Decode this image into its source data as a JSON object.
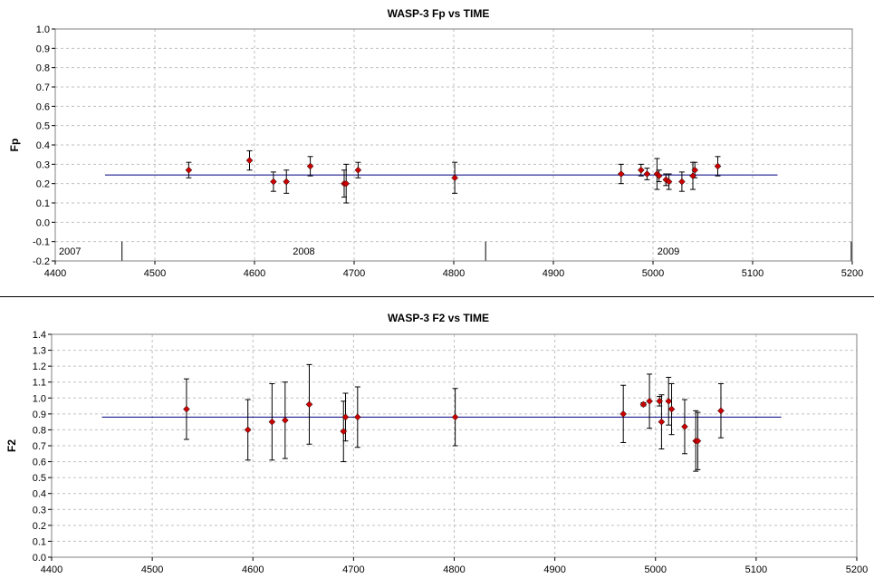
{
  "chart_data": [
    {
      "type": "scatter",
      "title": "WASP-3 Fp vs TIME",
      "xlabel": "",
      "ylabel": "Fp",
      "xlim": [
        4400,
        5200
      ],
      "ylim": [
        -0.2,
        1.0
      ],
      "x_ticks": [
        "4400",
        "4500",
        "4600",
        "4700",
        "4800",
        "4900",
        "5000",
        "5100",
        "5200"
      ],
      "y_ticks": [
        "-0.2",
        "-0.1",
        "0.0",
        "0.1",
        "0.2",
        "0.3",
        "0.4",
        "0.5",
        "0.6",
        "0.7",
        "0.8",
        "0.9",
        "1.0"
      ],
      "grid": true,
      "marker_color": "#cc0000",
      "errorbar_color": "#000000",
      "mean_line": {
        "value": 0.245,
        "x_range": [
          4450,
          5125
        ],
        "color": "#000080"
      },
      "year_bands": [
        {
          "label": "2007",
          "x_start": 4400,
          "x_end": 4467
        },
        {
          "label": "2008",
          "x_start": 4467,
          "x_end": 4832
        },
        {
          "label": "2009",
          "x_start": 4832,
          "x_end": 5199
        }
      ],
      "points": [
        {
          "x": 4534,
          "y": 0.27,
          "err": 0.04
        },
        {
          "x": 4595,
          "y": 0.32,
          "err": 0.05
        },
        {
          "x": 4619,
          "y": 0.21,
          "err": 0.05
        },
        {
          "x": 4632,
          "y": 0.21,
          "err": 0.06
        },
        {
          "x": 4656,
          "y": 0.29,
          "err": 0.05
        },
        {
          "x": 4690,
          "y": 0.2,
          "err": 0.07
        },
        {
          "x": 4692,
          "y": 0.2,
          "err": 0.1
        },
        {
          "x": 4704,
          "y": 0.27,
          "err": 0.04
        },
        {
          "x": 4801,
          "y": 0.23,
          "err": 0.08
        },
        {
          "x": 4968,
          "y": 0.25,
          "err": 0.05
        },
        {
          "x": 4988,
          "y": 0.27,
          "err": 0.03
        },
        {
          "x": 4994,
          "y": 0.25,
          "err": 0.03
        },
        {
          "x": 5004,
          "y": 0.25,
          "err": 0.08
        },
        {
          "x": 5006,
          "y": 0.24,
          "err": 0.03
        },
        {
          "x": 5013,
          "y": 0.22,
          "err": 0.03
        },
        {
          "x": 5016,
          "y": 0.21,
          "err": 0.04
        },
        {
          "x": 5029,
          "y": 0.21,
          "err": 0.05
        },
        {
          "x": 5040,
          "y": 0.24,
          "err": 0.07
        },
        {
          "x": 5042,
          "y": 0.27,
          "err": 0.04
        },
        {
          "x": 5065,
          "y": 0.29,
          "err": 0.05
        }
      ]
    },
    {
      "type": "scatter",
      "title": "WASP-3 F2 vs TIME",
      "xlabel": "",
      "ylabel": "F2",
      "xlim": [
        4400,
        5200
      ],
      "ylim": [
        0.0,
        1.4
      ],
      "x_ticks": [
        "4400",
        "4500",
        "4600",
        "4700",
        "4800",
        "4900",
        "5000",
        "5100",
        "5200"
      ],
      "y_ticks": [
        "0.0",
        "0.1",
        "0.2",
        "0.3",
        "0.4",
        "0.5",
        "0.6",
        "0.7",
        "0.8",
        "0.9",
        "1.0",
        "1.1",
        "1.2",
        "1.3",
        "1.4"
      ],
      "grid": true,
      "marker_color": "#cc0000",
      "errorbar_color": "#000000",
      "mean_line": {
        "value": 0.88,
        "x_range": [
          4450,
          5125
        ],
        "color": "#000080"
      },
      "points": [
        {
          "x": 4534,
          "y": 0.93,
          "err": 0.19
        },
        {
          "x": 4595,
          "y": 0.8,
          "err": 0.19
        },
        {
          "x": 4619,
          "y": 0.85,
          "err": 0.24
        },
        {
          "x": 4632,
          "y": 0.86,
          "err": 0.24
        },
        {
          "x": 4656,
          "y": 0.96,
          "err": 0.25
        },
        {
          "x": 4690,
          "y": 0.79,
          "err": 0.19
        },
        {
          "x": 4692,
          "y": 0.88,
          "err": 0.15
        },
        {
          "x": 4704,
          "y": 0.88,
          "err": 0.19
        },
        {
          "x": 4801,
          "y": 0.88,
          "err": 0.18
        },
        {
          "x": 4968,
          "y": 0.9,
          "err": 0.18
        },
        {
          "x": 4988,
          "y": 0.96,
          "err": 0.01
        },
        {
          "x": 4994,
          "y": 0.98,
          "err": 0.17
        },
        {
          "x": 5004,
          "y": 0.98,
          "err": 0.03
        },
        {
          "x": 5006,
          "y": 0.85,
          "err": 0.17
        },
        {
          "x": 5013,
          "y": 0.98,
          "err": 0.15
        },
        {
          "x": 5016,
          "y": 0.93,
          "err": 0.16
        },
        {
          "x": 5029,
          "y": 0.82,
          "err": 0.17
        },
        {
          "x": 5040,
          "y": 0.73,
          "err": 0.19
        },
        {
          "x": 5042,
          "y": 0.73,
          "err": 0.18
        },
        {
          "x": 5065,
          "y": 0.92,
          "err": 0.17
        }
      ]
    }
  ]
}
